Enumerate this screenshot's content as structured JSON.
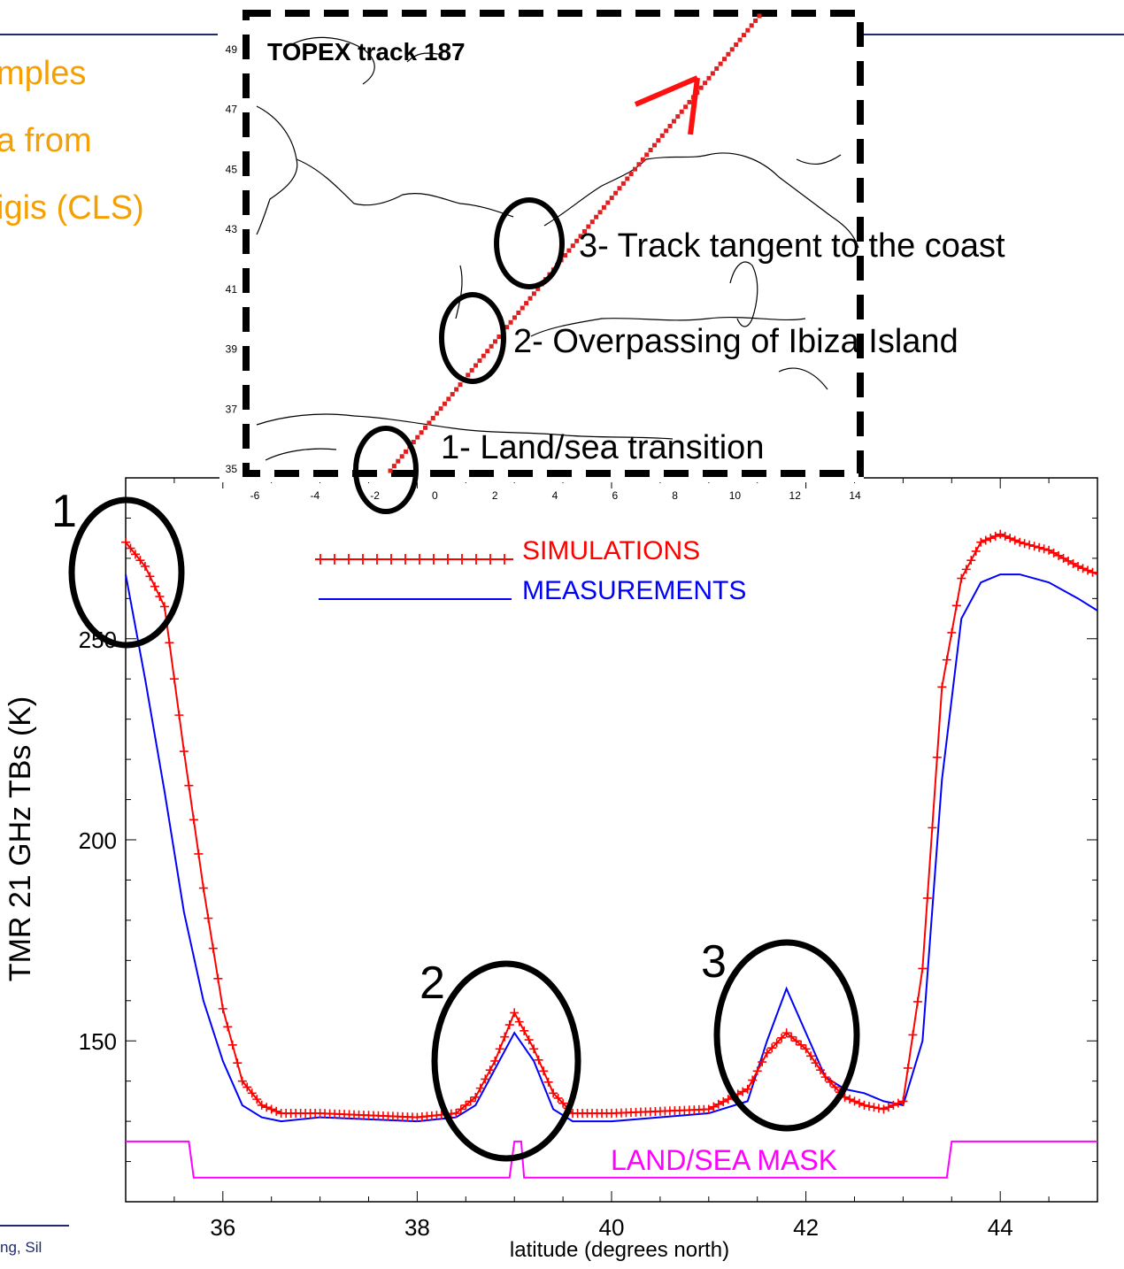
{
  "slide": {
    "text_lines": [
      "mples",
      "a from",
      "igis (CLS)"
    ],
    "footer": "ng, Sil",
    "colors": {
      "text": "#f5a000",
      "rules": "#1f2a6e"
    }
  },
  "map_inset": {
    "title": "TOPEX track 187",
    "lon_ticks": [
      "-6",
      "-4",
      "-2",
      "0",
      "2",
      "4",
      "6",
      "8",
      "10",
      "12",
      "14"
    ],
    "lat_ticks": [
      "35",
      "37",
      "39",
      "41",
      "43",
      "45",
      "47",
      "49"
    ],
    "track_color": "#e02020"
  },
  "annotations": {
    "callout_3": "3- Track tangent to the coast",
    "callout_2": "2- Overpassing of Ibiza Island",
    "callout_1": "1- Land/sea transition",
    "circle_labels": [
      "1",
      "2",
      "3"
    ]
  },
  "chart_data": {
    "type": "line",
    "title": "",
    "xlabel": "latitude (degrees north)",
    "ylabel": "TMR 21 GHz TBs (K)",
    "xlim": [
      35,
      45
    ],
    "ylim": [
      110,
      290
    ],
    "xticks": [
      "36",
      "38",
      "40",
      "42",
      "44"
    ],
    "yticks": [
      "150",
      "200",
      "250"
    ],
    "grid": false,
    "legend_position": "top-center",
    "series": [
      {
        "name": "SIMULATIONS",
        "color": "#ff0000",
        "marker": "plus",
        "x": [
          35.0,
          35.2,
          35.4,
          35.5,
          35.6,
          35.8,
          36.0,
          36.2,
          36.4,
          36.6,
          37.0,
          38.0,
          38.4,
          38.6,
          38.8,
          39.0,
          39.2,
          39.4,
          39.6,
          40.0,
          41.0,
          41.4,
          41.6,
          41.8,
          42.0,
          42.2,
          42.4,
          42.6,
          42.8,
          43.0,
          43.2,
          43.4,
          43.6,
          43.8,
          44.0,
          44.2,
          44.5,
          44.8,
          45.0
        ],
        "y": [
          274,
          268,
          258,
          240,
          222,
          188,
          158,
          140,
          134,
          132,
          132,
          131,
          132,
          136,
          145,
          157,
          148,
          137,
          132,
          132,
          133,
          138,
          147,
          152,
          148,
          141,
          136,
          134,
          133,
          135,
          168,
          238,
          265,
          274,
          276,
          274,
          272,
          268,
          266
        ]
      },
      {
        "name": "MEASUREMENTS",
        "color": "#0000ff",
        "x": [
          35.0,
          35.2,
          35.4,
          35.6,
          35.8,
          36.0,
          36.2,
          36.4,
          36.6,
          37.0,
          38.0,
          38.4,
          38.6,
          38.8,
          39.0,
          39.2,
          39.4,
          39.6,
          40.0,
          41.0,
          41.4,
          41.6,
          41.8,
          42.0,
          42.2,
          42.4,
          42.6,
          42.8,
          43.0,
          43.2,
          43.4,
          43.6,
          43.8,
          44.0,
          44.2,
          44.5,
          44.8,
          45.0
        ],
        "y": [
          266,
          240,
          212,
          182,
          160,
          145,
          134,
          131,
          130,
          131,
          130,
          131,
          134,
          143,
          152,
          145,
          133,
          130,
          130,
          132,
          135,
          150,
          163,
          152,
          141,
          138,
          137,
          135,
          134,
          150,
          215,
          255,
          264,
          266,
          266,
          264,
          260,
          257
        ]
      },
      {
        "name": "LAND/SEA MASK",
        "color": "#ff00ff",
        "x": [
          35.0,
          35.65,
          35.7,
          38.95,
          39.0,
          39.07,
          39.1,
          43.45,
          43.5,
          45.0
        ],
        "y": [
          125,
          125,
          116,
          116,
          125,
          125,
          116,
          116,
          125,
          125
        ]
      }
    ]
  }
}
